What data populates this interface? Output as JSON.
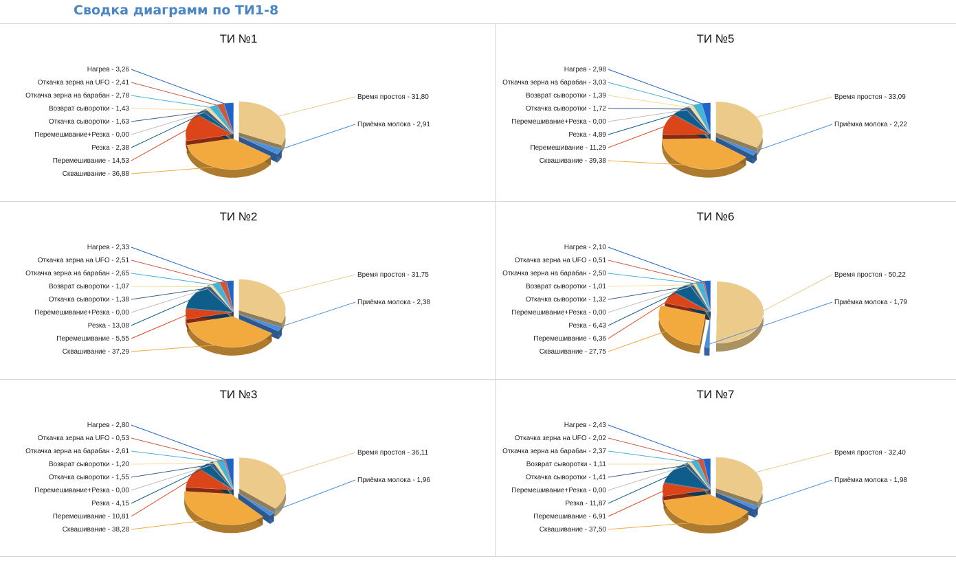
{
  "page": {
    "title": "Сводка диаграмм по ТИ1-8"
  },
  "colors": {
    "Время простоя": "#eccb8a",
    "Приёмка молока": "#4a8ee0",
    "Сквашивание": "#f2aa3e",
    "Перемешивание": "#dc4419",
    "Резка": "#0f5d8a",
    "Перемешивание+Резка": "#bdbdbd",
    "Откачка сыворотки": "#3b5e86",
    "Возврат сыворотки": "#f7dd9a",
    "Откачка зерна на барабан": "#45b3d8",
    "Откачка зерна на UFO": "#c95a40",
    "Нагрев": "#1f64c8"
  },
  "chart_data": [
    {
      "type": "pie",
      "title": "ТИ №1",
      "series": [
        {
          "category": "Время простоя",
          "value": 31.8,
          "label": "Время простоя - 31,80"
        },
        {
          "category": "Приёмка молока",
          "value": 2.91,
          "label": "Приёмка молока - 2,91"
        },
        {
          "category": "Сквашивание",
          "value": 36.88,
          "label": "Сквашивание - 36,88"
        },
        {
          "category": "Перемешивание",
          "value": 14.53,
          "label": "Перемешивание - 14,53"
        },
        {
          "category": "Резка",
          "value": 2.38,
          "label": "Резка - 2,38"
        },
        {
          "category": "Перемешивание+Резка",
          "value": 0.0,
          "label": "Перемешивание+Резка - 0,00"
        },
        {
          "category": "Откачка сыворотки",
          "value": 1.63,
          "label": "Откачка сыворотки - 1,63"
        },
        {
          "category": "Возврат сыворотки",
          "value": 1.43,
          "label": "Возврат сыворотки - 1,43"
        },
        {
          "category": "Откачка зерна на барабан",
          "value": 2.78,
          "label": "Откачка зерна на барабан - 2,78"
        },
        {
          "category": "Откачка зерна на UFO",
          "value": 2.41,
          "label": "Откачка зерна на UFO - 2,41"
        },
        {
          "category": "Нагрев",
          "value": 3.26,
          "label": "Нагрев - 3,26"
        }
      ]
    },
    {
      "type": "pie",
      "title": "ТИ №5",
      "series": [
        {
          "category": "Время простоя",
          "value": 33.09,
          "label": "Время простоя - 33,09"
        },
        {
          "category": "Приёмка молока",
          "value": 2.22,
          "label": "Приёмка молока - 2,22"
        },
        {
          "category": "Сквашивание",
          "value": 39.38,
          "label": "Сквашивание - 39,38"
        },
        {
          "category": "Перемешивание",
          "value": 11.29,
          "label": "Перемешивание - 11,29"
        },
        {
          "category": "Резка",
          "value": 4.89,
          "label": "Резка - 4,89"
        },
        {
          "category": "Перемешивание+Резка",
          "value": 0.0,
          "label": "Перемешивание+Резка - 0,00"
        },
        {
          "category": "Откачка сыворотки",
          "value": 1.72,
          "label": "Откачка сыворотки - 1,72"
        },
        {
          "category": "Возврат сыворотки",
          "value": 1.39,
          "label": "Возврат сыворотки - 1,39"
        },
        {
          "category": "Откачка зерна на барабан",
          "value": 3.03,
          "label": "Откачка зерна на барабан - 3,03"
        },
        {
          "category": "Нагрев",
          "value": 2.98,
          "label": "Нагрев - 2,98"
        }
      ]
    },
    {
      "type": "pie",
      "title": "ТИ №2",
      "series": [
        {
          "category": "Время простоя",
          "value": 31.75,
          "label": "Время простоя - 31,75"
        },
        {
          "category": "Приёмка молока",
          "value": 2.38,
          "label": "Приёмка молока - 2,38"
        },
        {
          "category": "Сквашивание",
          "value": 37.29,
          "label": "Сквашивание - 37,29"
        },
        {
          "category": "Перемешивание",
          "value": 5.55,
          "label": "Перемешивание - 5,55"
        },
        {
          "category": "Резка",
          "value": 13.08,
          "label": "Резка - 13,08"
        },
        {
          "category": "Перемешивание+Резка",
          "value": 0.0,
          "label": "Перемешивание+Резка - 0,00"
        },
        {
          "category": "Откачка сыворотки",
          "value": 1.38,
          "label": "Откачка сыворотки - 1,38"
        },
        {
          "category": "Возврат сыворотки",
          "value": 1.07,
          "label": "Возврат сыворотки - 1,07"
        },
        {
          "category": "Откачка зерна на барабан",
          "value": 2.65,
          "label": "Откачка зерна на барабан - 2,65"
        },
        {
          "category": "Откачка зерна на UFO",
          "value": 2.51,
          "label": "Откачка зерна на UFO - 2,51"
        },
        {
          "category": "Нагрев",
          "value": 2.33,
          "label": "Нагрев - 2,33"
        }
      ]
    },
    {
      "type": "pie",
      "title": "ТИ №6",
      "series": [
        {
          "category": "Время простоя",
          "value": 50.22,
          "label": "Время простоя - 50,22"
        },
        {
          "category": "Приёмка молока",
          "value": 1.79,
          "label": "Приёмка молока - 1,79"
        },
        {
          "category": "Сквашивание",
          "value": 27.75,
          "label": "Сквашивание - 27,75"
        },
        {
          "category": "Перемешивание",
          "value": 6.36,
          "label": "Перемешивание - 6,36"
        },
        {
          "category": "Резка",
          "value": 6.43,
          "label": "Резка - 6,43"
        },
        {
          "category": "Перемешивание+Резка",
          "value": 0.0,
          "label": "Перемешивание+Резка - 0,00"
        },
        {
          "category": "Откачка сыворотки",
          "value": 1.32,
          "label": "Откачка сыворотки - 1,32"
        },
        {
          "category": "Возврат сыворотки",
          "value": 1.01,
          "label": "Возврат сыворотки - 1,01"
        },
        {
          "category": "Откачка зерна на барабан",
          "value": 2.5,
          "label": "Откачка зерна на барабан - 2,50"
        },
        {
          "category": "Откачка зерна на UFO",
          "value": 0.51,
          "label": "Откачка зерна на UFO - 0,51"
        },
        {
          "category": "Нагрев",
          "value": 2.1,
          "label": "Нагрев - 2,10"
        }
      ]
    },
    {
      "type": "pie",
      "title": "ТИ №3",
      "series": [
        {
          "category": "Время простоя",
          "value": 36.11,
          "label": "Время простоя - 36,11"
        },
        {
          "category": "Приёмка молока",
          "value": 1.96,
          "label": "Приёмка молока - 1,96"
        },
        {
          "category": "Сквашивание",
          "value": 38.28,
          "label": "Сквашивание - 38,28"
        },
        {
          "category": "Перемешивание",
          "value": 10.81,
          "label": "Перемешивание - 10,81"
        },
        {
          "category": "Резка",
          "value": 4.15,
          "label": "Резка - 4,15"
        },
        {
          "category": "Перемешивание+Резка",
          "value": 0.0,
          "label": "Перемешивание+Резка - 0,00"
        },
        {
          "category": "Откачка сыворотки",
          "value": 1.55,
          "label": "Откачка сыворотки - 1,55"
        },
        {
          "category": "Возврат сыворотки",
          "value": 1.2,
          "label": "Возврат сыворотки - 1,20"
        },
        {
          "category": "Откачка зерна на барабан",
          "value": 2.61,
          "label": "Откачка зерна на барабан - 2,61"
        },
        {
          "category": "Откачка зерна на UFO",
          "value": 0.53,
          "label": "Откачка зерна на UFO - 0,53"
        },
        {
          "category": "Нагрев",
          "value": 2.8,
          "label": "Нагрев - 2,80"
        }
      ]
    },
    {
      "type": "pie",
      "title": "ТИ №7",
      "series": [
        {
          "category": "Время простоя",
          "value": 32.4,
          "label": "Время простоя - 32,40"
        },
        {
          "category": "Приёмка молока",
          "value": 1.98,
          "label": "Приёмка молока - 1,98"
        },
        {
          "category": "Сквашивание",
          "value": 37.5,
          "label": "Сквашивание - 37,50"
        },
        {
          "category": "Перемешивание",
          "value": 6.91,
          "label": "Перемешивание - 6,91"
        },
        {
          "category": "Резка",
          "value": 11.87,
          "label": "Резка - 11,87"
        },
        {
          "category": "Перемешивание+Резка",
          "value": 0.0,
          "label": "Перемешивание+Резка - 0,00"
        },
        {
          "category": "Откачка сыворотки",
          "value": 1.41,
          "label": "Откачка сыворотки - 1,41"
        },
        {
          "category": "Возврат сыворотки",
          "value": 1.11,
          "label": "Возврат сыворотки - 1,11"
        },
        {
          "category": "Откачка зерна на барабан",
          "value": 2.37,
          "label": "Откачка зерна на барабан - 2,37"
        },
        {
          "category": "Откачка зерна на UFO",
          "value": 2.02,
          "label": "Откачка зерна на UFO - 2,02"
        },
        {
          "category": "Нагрев",
          "value": 2.43,
          "label": "Нагрев - 2,43"
        }
      ]
    }
  ]
}
